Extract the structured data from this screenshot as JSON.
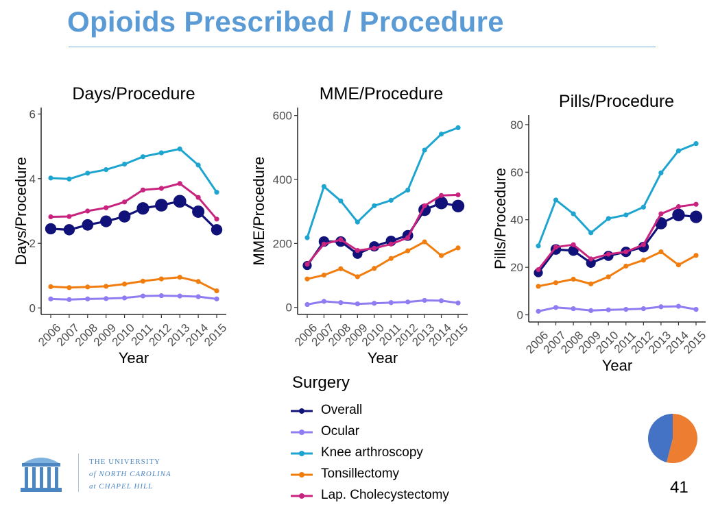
{
  "slide": {
    "title": "Opioids Prescribed / Procedure",
    "page_number": "41"
  },
  "colors": {
    "title": "#5b9bd5",
    "Overall": "#10127a",
    "Ocular": "#8f7cf2",
    "Knee arthroscopy": "#1ea5cf",
    "Tonsillectomy": "#f07d0e",
    "Lap. Cholecystectomy": "#c7237f",
    "pie_blue": "#4472c4",
    "pie_orange": "#ed7d31"
  },
  "logo": {
    "line1": "THE UNIVERSITY",
    "line2": "of NORTH CAROLINA",
    "line3": "at CHAPEL HILL"
  },
  "legend": {
    "title": "Surgery",
    "items": [
      "Overall",
      "Ocular",
      "Knee arthroscopy",
      "Tonsillectomy",
      "Lap. Cholecystectomy"
    ]
  },
  "pie": {
    "values": [
      0.54,
      0.46
    ],
    "colors": [
      "#ed7d31",
      "#4472c4"
    ]
  },
  "chart_data": [
    {
      "type": "line",
      "title": "Days/Procedure",
      "xlabel": "Year",
      "ylabel": "Days/Procedure",
      "x": [
        "2006",
        "2007",
        "2008",
        "2009",
        "2010",
        "2011",
        "2012",
        "2013",
        "2014",
        "2015"
      ],
      "ylim": [
        -0.2,
        6.2
      ],
      "yticks": [
        0,
        2,
        4,
        6
      ],
      "series": [
        {
          "name": "Knee arthroscopy",
          "values": [
            4.02,
            3.99,
            4.17,
            4.28,
            4.45,
            4.68,
            4.8,
            4.92,
            4.42,
            3.58
          ]
        },
        {
          "name": "Lap. Cholecystectomy",
          "values": [
            2.82,
            2.83,
            3.0,
            3.1,
            3.28,
            3.65,
            3.7,
            3.85,
            3.42,
            2.75
          ]
        },
        {
          "name": "Overall",
          "values": [
            2.45,
            2.42,
            2.57,
            2.68,
            2.83,
            3.08,
            3.18,
            3.3,
            2.98,
            2.42
          ]
        },
        {
          "name": "Tonsillectomy",
          "values": [
            0.66,
            0.63,
            0.65,
            0.67,
            0.74,
            0.83,
            0.9,
            0.95,
            0.82,
            0.53
          ]
        },
        {
          "name": "Ocular",
          "values": [
            0.28,
            0.26,
            0.28,
            0.29,
            0.31,
            0.37,
            0.38,
            0.37,
            0.35,
            0.28
          ]
        }
      ]
    },
    {
      "type": "line",
      "title": "MME/Procedure",
      "xlabel": "Year",
      "ylabel": "MME/Procedure",
      "x": [
        "2006",
        "2007",
        "2008",
        "2009",
        "2010",
        "2011",
        "2012",
        "2013",
        "2014",
        "2015"
      ],
      "ylim": [
        -22,
        625
      ],
      "yticks": [
        0,
        200,
        400,
        600
      ],
      "series": [
        {
          "name": "Knee arthroscopy",
          "values": [
            218,
            378,
            333,
            267,
            318,
            335,
            367,
            492,
            542,
            562
          ]
        },
        {
          "name": "Lap. Cholecystectomy",
          "values": [
            135,
            198,
            212,
            178,
            185,
            198,
            218,
            318,
            350,
            352
          ]
        },
        {
          "name": "Overall",
          "values": [
            131,
            206,
            206,
            167,
            191,
            208,
            225,
            305,
            327,
            317
          ]
        },
        {
          "name": "Tonsillectomy",
          "values": [
            89,
            101,
            121,
            96,
            122,
            153,
            177,
            205,
            162,
            186
          ]
        },
        {
          "name": "Ocular",
          "values": [
            9,
            19,
            15,
            11,
            13,
            15,
            17,
            22,
            21,
            14
          ]
        }
      ]
    },
    {
      "type": "line",
      "title": "Pills/Procedure",
      "xlabel": "Year",
      "ylabel": "Pills/Procedure",
      "x": [
        "2006",
        "2007",
        "2008",
        "2009",
        "2010",
        "2011",
        "2012",
        "2013",
        "2014",
        "2015"
      ],
      "ylim": [
        -3,
        84
      ],
      "yticks": [
        0,
        20,
        40,
        60,
        80
      ],
      "series": [
        {
          "name": "Knee arthroscopy",
          "values": [
            29,
            48.3,
            42.5,
            34.5,
            40.5,
            42,
            45.3,
            59.7,
            69,
            72
          ]
        },
        {
          "name": "Lap. Cholecystectomy",
          "values": [
            19,
            28.5,
            29.5,
            23.5,
            25.5,
            26.5,
            29.5,
            42.5,
            45.5,
            46.5
          ]
        },
        {
          "name": "Overall",
          "values": [
            17.7,
            27.5,
            27,
            21.8,
            24.8,
            26.5,
            28.5,
            38.5,
            42,
            41.2
          ]
        },
        {
          "name": "Tonsillectomy",
          "values": [
            12,
            13.5,
            15,
            13,
            16,
            20.5,
            23,
            26.5,
            21,
            25
          ]
        },
        {
          "name": "Ocular",
          "values": [
            1.5,
            3.1,
            2.6,
            1.8,
            2.1,
            2.3,
            2.6,
            3.4,
            3.6,
            2.3
          ]
        }
      ]
    }
  ]
}
